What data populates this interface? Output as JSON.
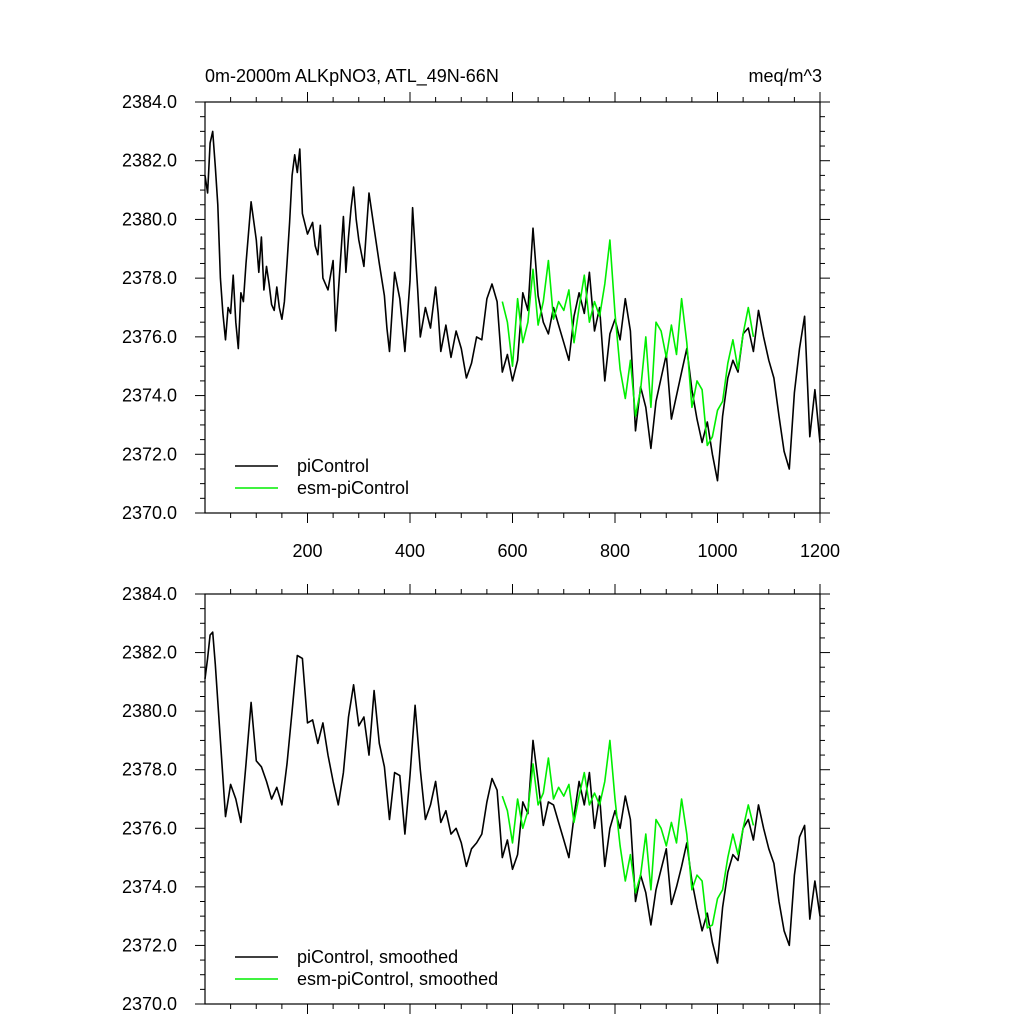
{
  "header": {
    "title": "0m-2000m ALKpNO3, ATL_49N-66N",
    "units": "meq/m^3"
  },
  "colors": {
    "picontrol": "#000000",
    "esm_picontrol": "#00ee00"
  },
  "chart_data": [
    {
      "type": "line",
      "xlim": [
        0,
        1200
      ],
      "ylim": [
        2370,
        2384
      ],
      "xticks": [
        200,
        400,
        600,
        800,
        1000,
        1200
      ],
      "xtick_labels": [
        "200",
        "400",
        "600",
        "800",
        "1000",
        "1200"
      ],
      "yticks": [
        2370,
        2372,
        2374,
        2376,
        2378,
        2380,
        2382,
        2384
      ],
      "ytick_labels": [
        "2370.0",
        "2372.0",
        "2374.0",
        "2376.0",
        "2378.0",
        "2380.0",
        "2382.0",
        "2384.0"
      ],
      "legend_position": "bottom-left",
      "series": [
        {
          "name": "piControl",
          "color": "#000000",
          "x": [
            0,
            5,
            10,
            15,
            20,
            25,
            30,
            35,
            40,
            45,
            50,
            55,
            60,
            65,
            70,
            75,
            80,
            90,
            100,
            105,
            110,
            115,
            120,
            125,
            130,
            135,
            140,
            145,
            150,
            155,
            160,
            165,
            170,
            175,
            180,
            185,
            190,
            200,
            210,
            215,
            220,
            225,
            230,
            240,
            250,
            255,
            260,
            270,
            275,
            280,
            285,
            290,
            295,
            300,
            310,
            320,
            330,
            340,
            350,
            355,
            360,
            370,
            380,
            390,
            400,
            405,
            410,
            415,
            420,
            430,
            440,
            450,
            455,
            460,
            470,
            480,
            490,
            500,
            510,
            520,
            530,
            540,
            550,
            560,
            570,
            580,
            590,
            600,
            610,
            620,
            630,
            640,
            650,
            660,
            670,
            680,
            690,
            700,
            710,
            720,
            730,
            740,
            750,
            760,
            770,
            780,
            790,
            800,
            810,
            820,
            830,
            840,
            850,
            860,
            870,
            880,
            890,
            900,
            910,
            920,
            930,
            940,
            950,
            960,
            970,
            980,
            990,
            1000,
            1010,
            1020,
            1030,
            1040,
            1050,
            1060,
            1070,
            1080,
            1090,
            1100,
            1110,
            1120,
            1130,
            1140,
            1150,
            1160,
            1170,
            1180,
            1190,
            1200
          ],
          "y": [
            2381.5,
            2380.9,
            2382.6,
            2383.0,
            2381.8,
            2380.5,
            2378.0,
            2376.8,
            2375.9,
            2377.0,
            2376.8,
            2378.1,
            2376.5,
            2375.6,
            2377.5,
            2377.2,
            2378.5,
            2380.6,
            2379.3,
            2378.2,
            2379.4,
            2377.6,
            2378.4,
            2377.8,
            2377.1,
            2376.9,
            2377.7,
            2377.0,
            2376.6,
            2377.2,
            2378.5,
            2379.9,
            2381.5,
            2382.2,
            2381.6,
            2382.4,
            2380.2,
            2379.5,
            2379.9,
            2379.1,
            2378.8,
            2379.8,
            2378.0,
            2377.6,
            2378.6,
            2376.2,
            2377.5,
            2380.1,
            2378.2,
            2379.4,
            2380.4,
            2381.1,
            2380.0,
            2379.3,
            2378.4,
            2380.9,
            2379.7,
            2378.5,
            2377.4,
            2376.3,
            2375.5,
            2378.2,
            2377.3,
            2375.5,
            2377.9,
            2380.4,
            2379.0,
            2377.6,
            2376.0,
            2377.0,
            2376.3,
            2377.7,
            2376.8,
            2375.5,
            2376.4,
            2375.3,
            2376.2,
            2375.6,
            2374.6,
            2375.1,
            2376.0,
            2375.9,
            2377.3,
            2377.8,
            2377.2,
            2374.8,
            2375.4,
            2374.5,
            2375.2,
            2377.5,
            2376.9,
            2379.7,
            2377.4,
            2376.5,
            2376.1,
            2377.0,
            2376.4,
            2375.8,
            2375.2,
            2376.7,
            2377.5,
            2376.8,
            2378.2,
            2376.2,
            2377.0,
            2374.5,
            2376.1,
            2376.6,
            2375.9,
            2377.3,
            2376.2,
            2372.8,
            2374.3,
            2373.6,
            2372.2,
            2373.8,
            2374.6,
            2375.4,
            2373.2,
            2374.0,
            2374.8,
            2375.6,
            2374.2,
            2373.2,
            2372.4,
            2373.1,
            2372.0,
            2371.1,
            2373.3,
            2374.6,
            2375.2,
            2374.8,
            2376.1,
            2376.3,
            2375.5,
            2376.9,
            2376.0,
            2375.2,
            2374.6,
            2373.3,
            2372.1,
            2371.5,
            2374.1,
            2375.6,
            2376.7,
            2372.6,
            2374.2,
            2372.4
          ]
        },
        {
          "name": "esm-piControl",
          "color": "#00ee00",
          "x": [
            580,
            590,
            600,
            610,
            620,
            630,
            640,
            650,
            660,
            670,
            680,
            690,
            700,
            710,
            720,
            730,
            740,
            750,
            760,
            770,
            780,
            790,
            800,
            810,
            820,
            830,
            840,
            850,
            860,
            870,
            880,
            890,
            900,
            910,
            920,
            930,
            940,
            950,
            960,
            970,
            980,
            990,
            1000,
            1010,
            1020,
            1030,
            1040,
            1050,
            1060,
            1070
          ],
          "y": [
            2377.2,
            2376.5,
            2375.0,
            2377.3,
            2375.8,
            2376.5,
            2378.3,
            2376.4,
            2377.2,
            2378.6,
            2376.6,
            2377.2,
            2376.9,
            2377.6,
            2375.8,
            2377.0,
            2378.1,
            2376.5,
            2377.2,
            2376.7,
            2377.8,
            2379.3,
            2376.8,
            2374.9,
            2373.9,
            2375.2,
            2373.3,
            2374.2,
            2376.0,
            2373.6,
            2376.5,
            2376.2,
            2375.3,
            2376.4,
            2375.4,
            2377.3,
            2375.8,
            2373.6,
            2374.5,
            2374.2,
            2372.3,
            2372.6,
            2373.5,
            2373.8,
            2375.1,
            2375.9,
            2374.9,
            2376.1,
            2377.0,
            2376.0
          ]
        }
      ]
    },
    {
      "type": "line",
      "xlim": [
        0,
        1200
      ],
      "ylim": [
        2370,
        2384
      ],
      "yticks": [
        2370,
        2372,
        2374,
        2376,
        2378,
        2380,
        2382,
        2384
      ],
      "ytick_labels": [
        "2370.0",
        "2372.0",
        "2374.0",
        "2376.0",
        "2378.0",
        "2380.0",
        "2382.0",
        "2384.0"
      ],
      "legend_position": "bottom-left",
      "series": [
        {
          "name": "piControl, smoothed",
          "color": "#000000",
          "x": [
            0,
            5,
            10,
            15,
            20,
            30,
            40,
            50,
            60,
            70,
            80,
            90,
            100,
            110,
            120,
            130,
            140,
            150,
            160,
            170,
            180,
            190,
            200,
            210,
            220,
            230,
            240,
            250,
            260,
            270,
            280,
            290,
            300,
            310,
            320,
            330,
            340,
            350,
            360,
            370,
            380,
            390,
            400,
            410,
            420,
            430,
            440,
            450,
            460,
            470,
            480,
            490,
            500,
            510,
            520,
            530,
            540,
            550,
            560,
            570,
            580,
            590,
            600,
            610,
            620,
            630,
            640,
            650,
            660,
            670,
            680,
            690,
            700,
            710,
            720,
            730,
            740,
            750,
            760,
            770,
            780,
            790,
            800,
            810,
            820,
            830,
            840,
            850,
            860,
            870,
            880,
            890,
            900,
            910,
            920,
            930,
            940,
            950,
            960,
            970,
            980,
            990,
            1000,
            1010,
            1020,
            1030,
            1040,
            1050,
            1060,
            1070,
            1080,
            1090,
            1100,
            1110,
            1120,
            1130,
            1140,
            1150,
            1160,
            1170,
            1180,
            1190,
            1200
          ],
          "y": [
            2381.1,
            2381.8,
            2382.6,
            2382.7,
            2381.6,
            2379.0,
            2376.4,
            2377.5,
            2377.0,
            2376.2,
            2378.2,
            2380.3,
            2378.3,
            2378.1,
            2377.6,
            2377.0,
            2377.4,
            2376.8,
            2378.2,
            2380.0,
            2381.9,
            2381.8,
            2379.6,
            2379.7,
            2378.9,
            2379.6,
            2378.5,
            2377.6,
            2376.8,
            2377.9,
            2379.8,
            2380.9,
            2379.5,
            2379.8,
            2378.5,
            2380.7,
            2378.9,
            2378.1,
            2376.3,
            2377.9,
            2377.8,
            2375.8,
            2377.8,
            2380.2,
            2378.0,
            2376.3,
            2376.8,
            2377.6,
            2376.2,
            2376.6,
            2375.8,
            2376.0,
            2375.5,
            2374.7,
            2375.3,
            2375.5,
            2375.8,
            2376.9,
            2377.7,
            2377.3,
            2375.0,
            2375.6,
            2374.6,
            2375.1,
            2376.9,
            2376.5,
            2379.0,
            2377.6,
            2376.1,
            2376.9,
            2376.8,
            2376.2,
            2375.6,
            2375.0,
            2376.4,
            2377.6,
            2376.8,
            2377.9,
            2376.0,
            2377.1,
            2374.7,
            2376.0,
            2376.6,
            2376.0,
            2377.1,
            2376.3,
            2373.5,
            2374.4,
            2373.8,
            2372.7,
            2373.9,
            2374.6,
            2375.3,
            2373.4,
            2374.0,
            2374.7,
            2375.5,
            2374.2,
            2373.3,
            2372.5,
            2373.1,
            2372.1,
            2371.4,
            2373.3,
            2374.5,
            2375.1,
            2374.9,
            2376.0,
            2376.3,
            2375.6,
            2376.8,
            2376.0,
            2375.3,
            2374.8,
            2373.5,
            2372.5,
            2372.0,
            2374.4,
            2375.7,
            2376.1,
            2372.9,
            2374.2,
            2373.0
          ]
        },
        {
          "name": "esm-piControl, smoothed",
          "color": "#00ee00",
          "x": [
            580,
            590,
            600,
            610,
            620,
            630,
            640,
            650,
            660,
            670,
            680,
            690,
            700,
            710,
            720,
            730,
            740,
            750,
            760,
            770,
            780,
            790,
            800,
            810,
            820,
            830,
            840,
            850,
            860,
            870,
            880,
            890,
            900,
            910,
            920,
            930,
            940,
            950,
            960,
            970,
            980,
            990,
            1000,
            1010,
            1020,
            1030,
            1040,
            1050,
            1060,
            1070
          ],
          "y": [
            2377.1,
            2376.6,
            2375.5,
            2377.0,
            2376.0,
            2376.6,
            2378.2,
            2376.8,
            2377.2,
            2378.4,
            2377.0,
            2377.4,
            2377.1,
            2377.5,
            2376.2,
            2377.1,
            2377.9,
            2376.8,
            2377.2,
            2376.8,
            2377.6,
            2379.0,
            2377.0,
            2375.4,
            2374.2,
            2375.1,
            2373.8,
            2374.4,
            2375.8,
            2373.9,
            2376.3,
            2376.0,
            2375.4,
            2376.2,
            2375.5,
            2377.0,
            2375.8,
            2373.9,
            2374.4,
            2374.2,
            2372.6,
            2372.7,
            2373.6,
            2373.9,
            2375.0,
            2375.8,
            2375.1,
            2376.0,
            2376.8,
            2376.1
          ]
        }
      ]
    }
  ]
}
